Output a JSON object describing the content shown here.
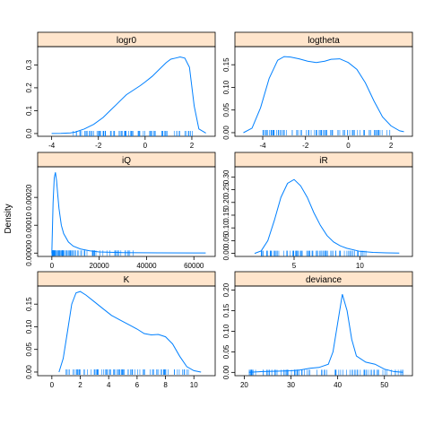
{
  "chart_data": {
    "type": "line",
    "ylabel": "Density",
    "panels": [
      {
        "title": "logr0",
        "xlim": [
          -4.6,
          3.0
        ],
        "ylim": [
          -0.012,
          0.38
        ],
        "xticks": [
          -4,
          -2,
          0,
          2
        ],
        "xtick_labels": [
          "-4",
          "-2",
          "0",
          "2"
        ],
        "yticks": [
          0.0,
          0.1,
          0.2,
          0.3
        ],
        "ytick_labels": [
          "0.0",
          "0.1",
          "0.2",
          "0.3"
        ],
        "x": [
          -4.0,
          -3.6,
          -3.2,
          -3.0,
          -2.6,
          -2.2,
          -1.8,
          -1.5,
          -1.2,
          -1.0,
          -0.8,
          -0.5,
          -0.2,
          0.0,
          0.3,
          0.6,
          0.9,
          1.1,
          1.3,
          1.5,
          1.7,
          1.9,
          2.1,
          2.3,
          2.6
        ],
        "y": [
          0.0,
          0.001,
          0.003,
          0.006,
          0.02,
          0.04,
          0.07,
          0.1,
          0.13,
          0.15,
          0.17,
          0.19,
          0.21,
          0.225,
          0.25,
          0.28,
          0.31,
          0.325,
          0.33,
          0.335,
          0.33,
          0.29,
          0.12,
          0.02,
          0.002
        ],
        "rug_range": [
          -3.2,
          2.1
        ]
      },
      {
        "title": "logtheta",
        "xlim": [
          -5.3,
          3.0
        ],
        "ylim": [
          -0.008,
          0.19
        ],
        "xticks": [
          -4,
          -2,
          0,
          2
        ],
        "xtick_labels": [
          "-4",
          "-2",
          "0",
          "2"
        ],
        "yticks": [
          0.0,
          0.05,
          0.1,
          0.15
        ],
        "ytick_labels": [
          "0.00",
          "0.05",
          "0.10",
          "0.15"
        ],
        "x": [
          -4.9,
          -4.5,
          -4.1,
          -3.7,
          -3.3,
          -3.0,
          -2.7,
          -2.3,
          -1.9,
          -1.5,
          -1.1,
          -0.8,
          -0.4,
          0.0,
          0.4,
          0.8,
          1.2,
          1.6,
          2.0,
          2.4,
          2.6
        ],
        "y": [
          0.0,
          0.01,
          0.055,
          0.12,
          0.16,
          0.168,
          0.167,
          0.163,
          0.158,
          0.155,
          0.158,
          0.162,
          0.163,
          0.155,
          0.14,
          0.11,
          0.07,
          0.035,
          0.015,
          0.004,
          0.002
        ],
        "rug_range": [
          -4.0,
          2.0
        ]
      },
      {
        "title": "iQ",
        "xlim": [
          -6000,
          69000
        ],
        "ylim": [
          -1.2e-05,
          0.00031
        ],
        "xticks": [
          0,
          20000,
          40000,
          60000
        ],
        "xtick_labels": [
          "0",
          "20000",
          "40000",
          "60000"
        ],
        "yticks": [
          0.0,
          0.0001,
          0.0002
        ],
        "ytick_labels": [
          "0.00000",
          "0.00010",
          "0.00020"
        ],
        "x": [
          0,
          500,
          1000,
          1500,
          2000,
          2500,
          3000,
          4000,
          5000,
          7000,
          9000,
          12000,
          16000,
          20000,
          30000,
          45000,
          60000,
          65000
        ],
        "y": [
          0.0,
          0.00018,
          0.00027,
          0.00029,
          0.00026,
          0.00021,
          0.00016,
          0.0001,
          7e-05,
          4e-05,
          2.5e-05,
          1.5e-05,
          8e-06,
          4e-06,
          2e-06,
          1e-06,
          5e-07,
          5e-07
        ],
        "rug_range": [
          0,
          35000
        ]
      },
      {
        "title": "iR",
        "xlim": [
          0.5,
          14.0
        ],
        "ylim": [
          -0.012,
          0.34
        ],
        "xticks": [
          5,
          10
        ],
        "xtick_labels": [
          "5",
          "10"
        ],
        "yticks": [
          0.0,
          0.05,
          0.1,
          0.15,
          0.2,
          0.25,
          0.3
        ],
        "ytick_labels": [
          "0.00",
          "0.05",
          "0.10",
          "0.15",
          "0.20",
          "0.25",
          "0.30"
        ],
        "x": [
          2.0,
          2.5,
          3.0,
          3.5,
          4.0,
          4.5,
          5.0,
          5.5,
          6.0,
          6.5,
          7.0,
          7.5,
          8.0,
          8.5,
          9.0,
          10.0,
          11.0,
          12.0,
          13.0
        ],
        "y": [
          0.0,
          0.01,
          0.05,
          0.13,
          0.22,
          0.275,
          0.29,
          0.265,
          0.22,
          0.16,
          0.11,
          0.07,
          0.045,
          0.03,
          0.02,
          0.008,
          0.004,
          0.002,
          0.001
        ],
        "rug_range": [
          2.5,
          10.5
        ]
      },
      {
        "title": "K",
        "xlim": [
          -1.0,
          11.5
        ],
        "ylim": [
          -0.008,
          0.19
        ],
        "xticks": [
          0,
          2,
          4,
          6,
          8,
          10
        ],
        "xtick_labels": [
          "0",
          "2",
          "4",
          "6",
          "8",
          "10"
        ],
        "yticks": [
          0.0,
          0.05,
          0.1,
          0.15
        ],
        "ytick_labels": [
          "0.00",
          "0.05",
          "0.10",
          "0.15"
        ],
        "x": [
          0.5,
          0.8,
          1.1,
          1.4,
          1.7,
          2.0,
          2.4,
          3.0,
          3.6,
          4.2,
          4.8,
          5.4,
          6.0,
          6.5,
          7.0,
          7.5,
          8.0,
          8.5,
          9.0,
          9.5,
          10.0,
          10.5
        ],
        "y": [
          0.0,
          0.03,
          0.09,
          0.15,
          0.175,
          0.178,
          0.17,
          0.155,
          0.14,
          0.125,
          0.115,
          0.105,
          0.095,
          0.085,
          0.082,
          0.083,
          0.078,
          0.062,
          0.035,
          0.012,
          0.003,
          0.0
        ],
        "rug_range": [
          1.0,
          9.8
        ]
      },
      {
        "title": "deviance",
        "xlim": [
          18.0,
          56.0
        ],
        "ylim": [
          -0.008,
          0.21
        ],
        "xticks": [
          20,
          30,
          40,
          50
        ],
        "xtick_labels": [
          "20",
          "30",
          "40",
          "50"
        ],
        "yticks": [
          0.0,
          0.05,
          0.1,
          0.15,
          0.2
        ],
        "ytick_labels": [
          "0.00",
          "0.05",
          "0.10",
          "0.15",
          "0.20"
        ],
        "x": [
          21,
          24,
          27,
          30,
          32,
          34,
          36,
          38,
          39,
          40,
          41,
          42,
          43,
          44,
          46,
          48,
          50,
          52,
          54
        ],
        "y": [
          0.0,
          0.002,
          0.003,
          0.004,
          0.006,
          0.01,
          0.012,
          0.02,
          0.05,
          0.12,
          0.19,
          0.15,
          0.08,
          0.04,
          0.025,
          0.02,
          0.008,
          0.002,
          0.0
        ],
        "rug_range": [
          21,
          54
        ]
      }
    ]
  }
}
